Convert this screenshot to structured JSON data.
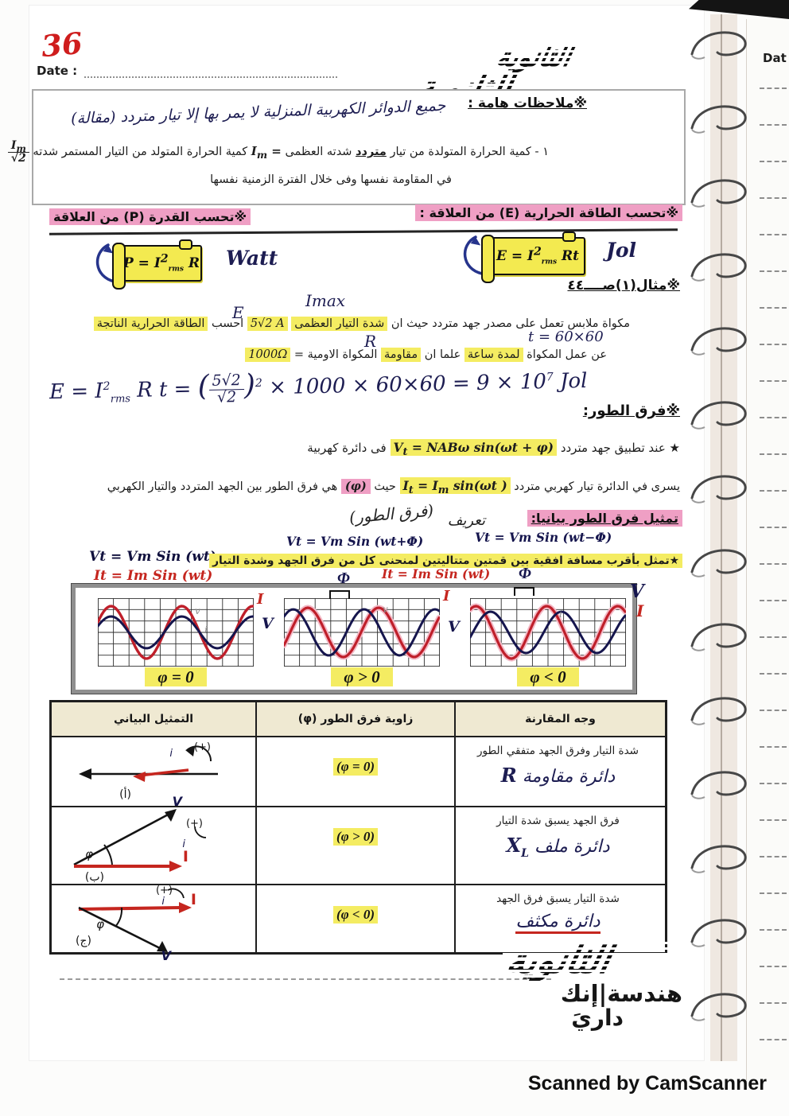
{
  "symbols": {
    "flower": "※",
    "star": "★"
  },
  "page": {
    "number": "36",
    "date_label": "Date :"
  },
  "neighbor": {
    "date_label": "Dat"
  },
  "brand": {
    "logo_top_line1": "الثانوية",
    "logo_top_line2": "الثانوية",
    "logo_bottom": "الثانوية",
    "tagline1": "هندسة|إنك",
    "tagline2": "داريَ"
  },
  "notes": {
    "heading": "ملاحظات هامة :",
    "hand_title": "جميع الدوائر الكهربية المنزلية لا يمر بها إلا تيار متردد (مقالة)",
    "l1a1": "١ - كمية الحرارة المتولدة من تيار",
    "l1a2": "متردد",
    "l1a3": "شدته العظمى",
    "im_i": "I",
    "im_m": "m",
    "im_eq": " =",
    "l1b": "كمية الحرارة المتولد من التيار المستمر شدته",
    "frac_i": "I",
    "frac_m": "m",
    "frac_den": "√2",
    "l2": "في المقاومة نفسها وفى خلال الفترة الزمنية نفسها"
  },
  "energy": {
    "heading": "تحسب الطاقة الحرارية (E) من العلاقة :",
    "f_base": "E = I",
    "f_sup": "2",
    "f_sub": "rms",
    "f_tail": " Rt",
    "unit": "Jol"
  },
  "power": {
    "heading": "تحسب القدرة (P) من العلاقة",
    "f_base": "P = I",
    "f_sup": "2",
    "f_sub": "rms",
    "f_tail": " R",
    "unit": "Watt"
  },
  "example": {
    "heading": "مثال(١)صــــ٤٤",
    "imax": "Imax",
    "e": "E",
    "r": "R",
    "t": "t = 60×60",
    "l1a": "مكواة ملابس تعمل على مصدر جهد متردد حيث ان",
    "l1b": "شدة التيار العظمى",
    "l1c": "5√2 A",
    "l1d": "احسب",
    "l1e": "الطاقة الحرارية الناتجة",
    "l2a": "عن عمل المكواة",
    "l2b": "لمدة ساعة",
    "l2c": "علما ان",
    "l2d": "مقاومة",
    "l2e": "المكواة الاومية =",
    "l2f": "1000Ω",
    "sol_a": "E = I",
    "sol_a_sup": "2",
    "sol_a_sub": "rms",
    "sol_b": " R t  =  ",
    "sol_open": "(",
    "sol_num": "5√2",
    "sol_den": "√2",
    "sol_close": ")",
    "sol_close_sup": "2",
    "sol_c": " × 1000 × 60×60  =  9 × 10",
    "sol_c_sup": "7",
    "sol_d": " Jol"
  },
  "phase": {
    "heading": "فرق الطور:",
    "l1a": "عند تطبيق جهد متردد",
    "f1_base": "V",
    "f1_sub": "t",
    "f1_rest": " = NABω sin(ωt + φ)",
    "l1b": "فى دائرة كهربية",
    "l2a": "يسرى في الدائرة تيار كهربي متردد",
    "f2_base": "I",
    "f2_sub": "t",
    "f2_mid": " = I",
    "f2_sub2": "m",
    "f2_rest": " sin(ωt )",
    "l2b": "حيث",
    "phi": "(φ)",
    "l2c": "هي فرق الطور بين الجهد المتردد والتيار الكهربي"
  },
  "graphical": {
    "heading": "تمثيل فرق الطور بيانيا:",
    "def_word": "تعريف",
    "def_word2": "(فرق الطور)",
    "left_v": "Vt = Vm Sin (wt)",
    "left_i": "It = Im Sin (wt)",
    "mid_v": "Vt = Vm Sin (wt+Φ)",
    "mid_i": "It = Im Sin (wt)",
    "right_v": "Vt = Vm Sin (wt−Φ)",
    "right_i": "It = Im Sin (wt)",
    "note": "★تمثل بأقرب مسافة افقية بين قمتين متتاليتين لمنحنى كل من فرق الجهد وشدة التيار",
    "outer_v": "V",
    "outer_i": "I",
    "phi_symbol": "Φ",
    "graphs": [
      {
        "caption": "φ = 0",
        "label_i": "I",
        "label_v": "V",
        "faint_v": "v",
        "faint_i": "i",
        "waves": [
          {
            "color": "#bf1f2a",
            "amp": 33,
            "phase": 0.4,
            "cycles": 2.2,
            "width": 3.4
          },
          {
            "color": "#15154d",
            "amp": 20,
            "phase": 0.4,
            "cycles": 2.2,
            "width": 3.0
          }
        ]
      },
      {
        "caption": "φ > 0",
        "label_i": "I",
        "label_v": "V",
        "faint_v": "v",
        "faint_i": "",
        "waves": [
          {
            "color": "#f3b9c6",
            "amp": 31,
            "phase": -0.55,
            "cycles": 2.2,
            "width": 7
          },
          {
            "color": "#bf1f2a",
            "amp": 31,
            "phase": -0.55,
            "cycles": 2.2,
            "width": 3.2
          },
          {
            "color": "#15154d",
            "amp": 29,
            "phase": 0.75,
            "cycles": 2.2,
            "width": 3.0
          }
        ]
      },
      {
        "caption": "φ < 0",
        "label_i": "",
        "label_v": "",
        "faint_v": "",
        "faint_i": "i",
        "waves": [
          {
            "color": "#f3b9c6",
            "amp": 33,
            "phase": 1.05,
            "cycles": 2.2,
            "width": 7
          },
          {
            "color": "#bf1f2a",
            "amp": 33,
            "phase": 1.05,
            "cycles": 2.2,
            "width": 3.2
          },
          {
            "color": "#15154d",
            "amp": 26,
            "phase": -0.25,
            "cycles": 2.2,
            "width": 3.0
          }
        ]
      }
    ]
  },
  "comparison_table": {
    "headers": [
      "وجه المقارنة",
      "زاوية فرق الطور (φ)",
      "التمثيل البياني"
    ],
    "rows": [
      {
        "comparison": "شدة التيار وفرق الجهد متفقي الطور",
        "hand": "دائرة مقاومة",
        "hand_sym": "R",
        "hand_sym_sub": "",
        "phase": "(φ = 0)",
        "labels": {
          "plus": "(+)",
          "i": "i",
          "phi": "",
          "tag": "(أ)",
          "v": "",
          "big_i": ""
        }
      },
      {
        "comparison": "فرق الجهد يسبق شدة التيار",
        "hand": "دائرة ملف",
        "hand_sym": "X",
        "hand_sym_sub": "L",
        "phase": "(φ > 0)",
        "labels": {
          "plus": "(+)",
          "i": "i",
          "phi": "φ",
          "tag": "(ب)",
          "v": "V",
          "big_i": "I"
        }
      },
      {
        "comparison": "شدة التيار يسبق فرق الجهد",
        "hand": "دائرة مكثف",
        "hand_sym": "",
        "hand_sym_sub": "",
        "phase": "(φ < 0)",
        "labels": {
          "plus": "(+)",
          "i": "i",
          "phi": "φ",
          "tag": "(ج)",
          "v": "V",
          "big_i": "I"
        }
      }
    ]
  },
  "footer": {
    "camscanner": "Scanned by CamScanner"
  }
}
